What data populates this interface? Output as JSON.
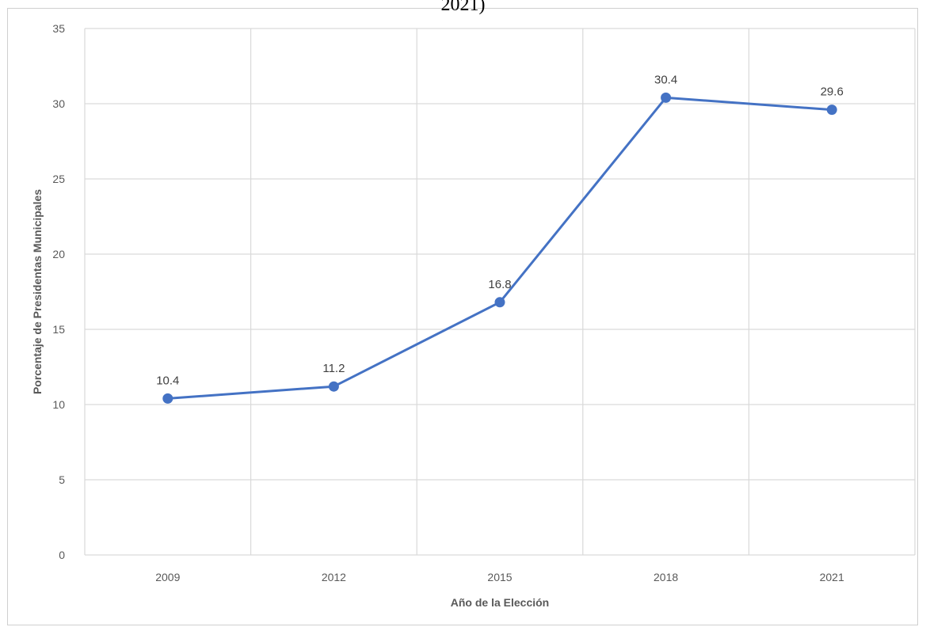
{
  "title_fragment": "2021)",
  "chart_data": {
    "type": "line",
    "title": "",
    "xlabel": "Año de la Elección",
    "ylabel": "Porcentaje de Presidentas Municipales",
    "categories": [
      "2009",
      "2012",
      "2015",
      "2018",
      "2021"
    ],
    "series": [
      {
        "name": "",
        "values": [
          10.4,
          11.2,
          16.8,
          30.4,
          29.6
        ],
        "color": "#4472C4"
      }
    ],
    "data_labels": [
      "10.4",
      "11.2",
      "16.8",
      "30.4",
      "29.6"
    ],
    "yticks": [
      "0",
      "5",
      "10",
      "15",
      "20",
      "25",
      "30",
      "35"
    ],
    "ylim": [
      0,
      35
    ],
    "grid": true,
    "legend": "none"
  }
}
